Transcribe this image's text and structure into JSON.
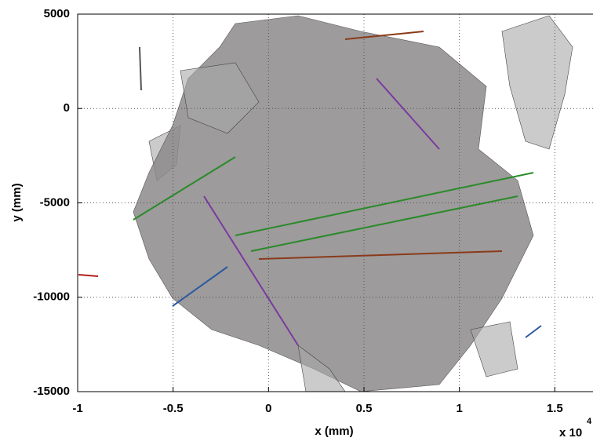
{
  "chart_data": {
    "type": "patch",
    "xlabel": "x (mm)",
    "ylabel": "y (mm)",
    "x_multiplier": {
      "base": "x 10",
      "exponent": "4"
    },
    "xlim": [
      -1,
      1.7
    ],
    "xticks": [
      -1,
      -0.5,
      0,
      0.5,
      1,
      1.5
    ],
    "ylim": [
      -15000,
      5000
    ],
    "yticks": [
      -15000,
      -10000,
      -5000,
      0,
      5000
    ],
    "grid": true
  }
}
